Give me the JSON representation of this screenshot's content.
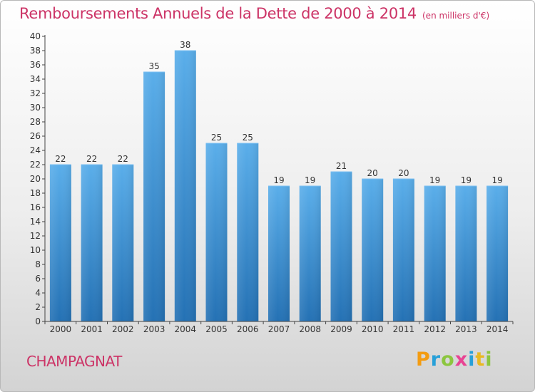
{
  "chart_data": {
    "type": "bar",
    "title": "Remboursements Annuels de la Dette de 2000 à 2014",
    "subtitle": "(en milliers d'€)",
    "categories": [
      "2000",
      "2001",
      "2002",
      "2003",
      "2004",
      "2005",
      "2006",
      "2007",
      "2008",
      "2009",
      "2010",
      "2011",
      "2012",
      "2013",
      "2014"
    ],
    "values": [
      22,
      22,
      22,
      35,
      38,
      25,
      25,
      19,
      19,
      21,
      20,
      20,
      19,
      19,
      19
    ],
    "xlabel": "",
    "ylabel": "",
    "ylim": [
      0,
      40
    ],
    "ytick_step": 2,
    "grid": false,
    "colors": {
      "bar_top": "#5aaeea",
      "bar_bottom": "#2471b4",
      "axis": "#444444"
    }
  },
  "commune": "CHAMPAGNAT",
  "brand": {
    "letters": [
      "P",
      "r",
      "o",
      "x",
      "i",
      "t",
      "i"
    ],
    "colors": [
      "#f39c12",
      "#27a0d8",
      "#8cc63f",
      "#e84393",
      "#27a0d8",
      "#e8b923",
      "#8cc63f"
    ]
  }
}
